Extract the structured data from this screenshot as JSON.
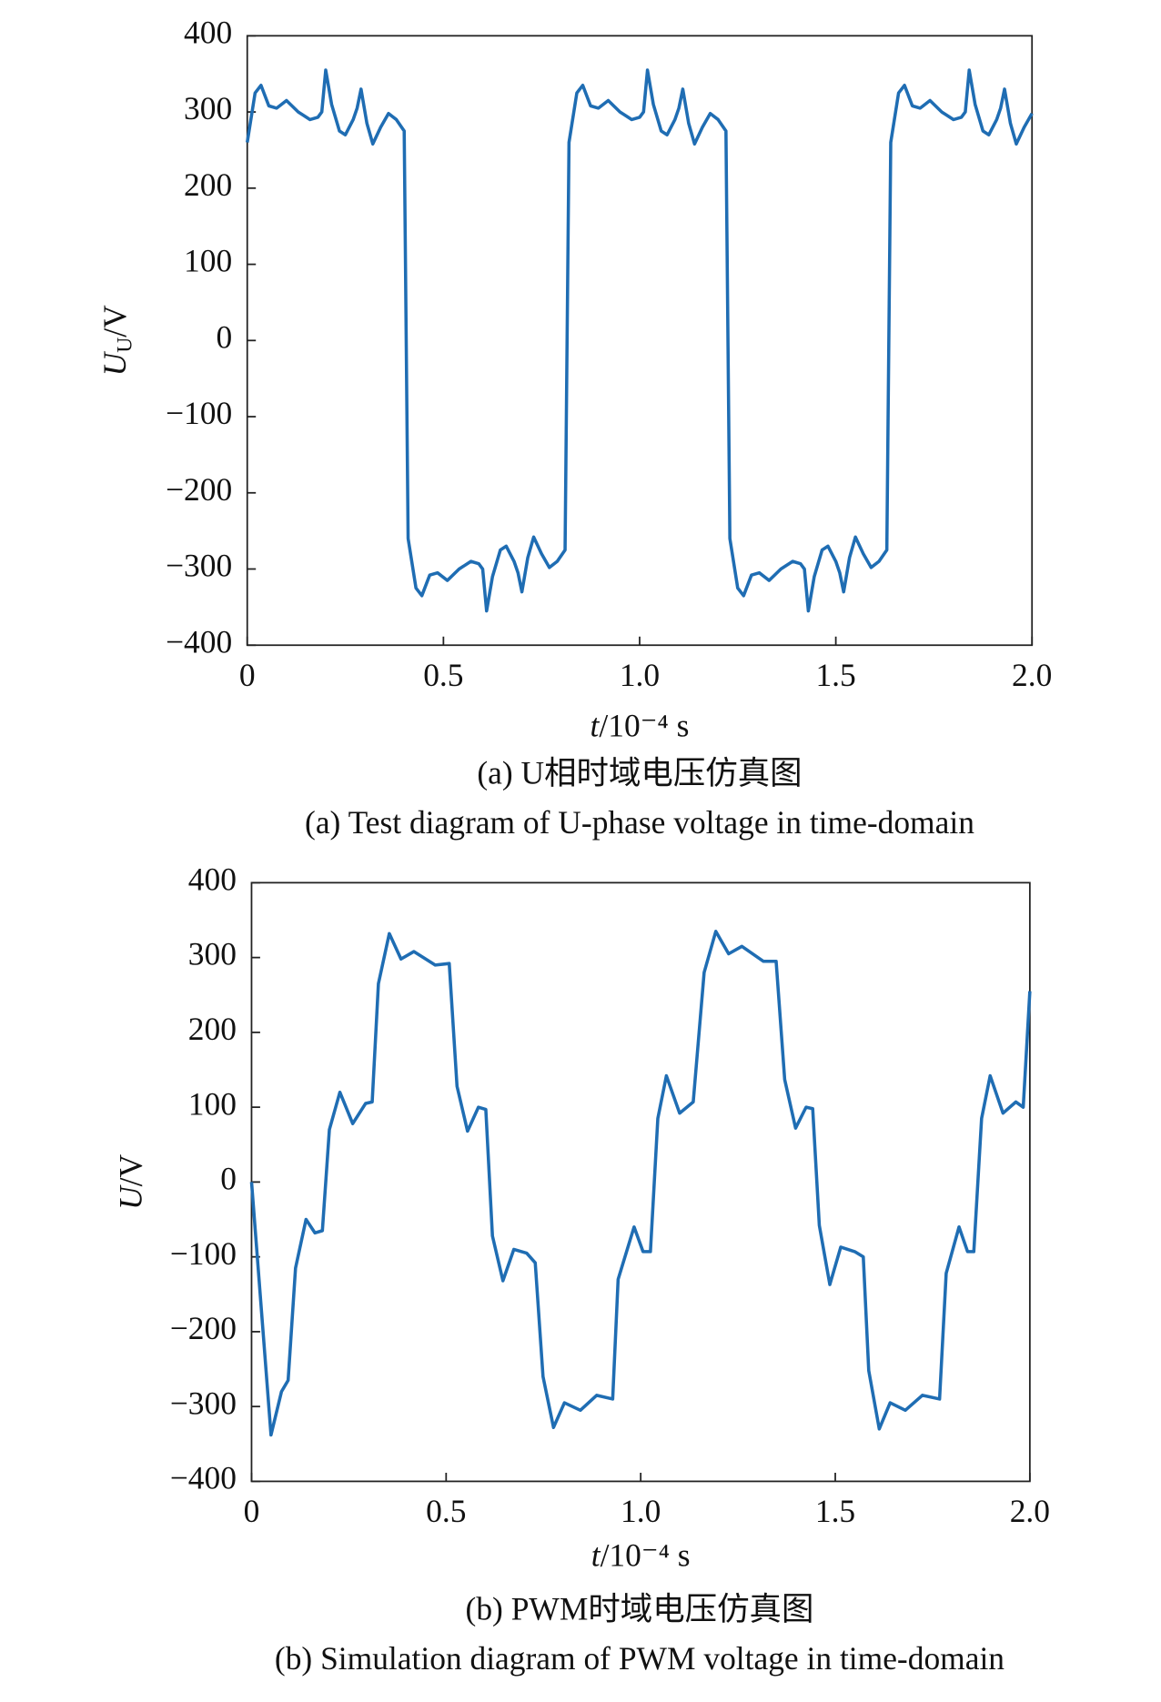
{
  "chart_data": [
    {
      "type": "line",
      "color": "#1f6db3",
      "xlabel": {
        "var": "t",
        "unit": "/10⁻⁴ s"
      },
      "ylabel": {
        "var": "U",
        "sub": "U",
        "unit": "/V"
      },
      "captions": [
        "(a) U相时域电压仿真图",
        "(a) Test diagram of U-phase voltage in time-domain"
      ],
      "xlim": [
        0,
        2
      ],
      "ylim": [
        -400,
        400
      ],
      "xticks": [
        0,
        0.5,
        {
          "value": 1,
          "label": "1.0"
        },
        1.5,
        {
          "value": 2,
          "label": "2.0"
        }
      ],
      "yticks": [
        {
          "value": -400,
          "label": "−400"
        },
        {
          "value": -300,
          "label": "−300"
        },
        {
          "value": -200,
          "label": "−200"
        },
        {
          "value": -100,
          "label": "−100"
        },
        0,
        100,
        200,
        300,
        400
      ],
      "x": [
        0,
        0.02,
        0.035,
        0.055,
        0.075,
        0.1,
        0.13,
        0.16,
        0.18,
        0.19,
        0.2,
        0.215,
        0.235,
        0.25,
        0.27,
        0.28,
        0.29,
        0.305,
        0.32,
        0.34,
        0.36,
        0.38,
        0.4,
        0.41,
        0.43,
        0.445,
        0.465,
        0.485,
        0.51,
        0.54,
        0.57,
        0.59,
        0.6,
        0.61,
        0.625,
        0.645,
        0.66,
        0.68,
        0.69,
        0.7,
        0.715,
        0.73,
        0.75,
        0.77,
        0.79,
        0.81,
        0.82,
        0.84,
        0.855,
        0.875,
        0.895,
        0.92,
        0.95,
        0.98,
        1,
        1.01,
        1.02,
        1.035,
        1.055,
        1.07,
        1.09,
        1.1,
        1.11,
        1.125,
        1.14,
        1.16,
        1.18,
        1.2,
        1.22,
        1.23,
        1.25,
        1.265,
        1.285,
        1.305,
        1.33,
        1.36,
        1.39,
        1.41,
        1.42,
        1.43,
        1.445,
        1.465,
        1.48,
        1.5,
        1.51,
        1.52,
        1.535,
        1.55,
        1.57,
        1.59,
        1.61,
        1.63,
        1.64,
        1.66,
        1.675,
        1.695,
        1.715,
        1.74,
        1.77,
        1.8,
        1.82,
        1.83,
        1.84,
        1.855,
        1.875,
        1.89,
        1.91,
        1.92,
        1.93,
        1.945,
        1.96,
        1.98,
        2.0
      ],
      "values": [
        260,
        325,
        335,
        308,
        305,
        315,
        300,
        290,
        293,
        300,
        355,
        310,
        275,
        270,
        290,
        305,
        330,
        285,
        258,
        280,
        298,
        290,
        275,
        -260,
        -325,
        -335,
        -308,
        -305,
        -315,
        -300,
        -290,
        -293,
        -300,
        -355,
        -310,
        -275,
        -270,
        -290,
        -305,
        -330,
        -285,
        -258,
        -280,
        -298,
        -290,
        -275,
        260,
        325,
        335,
        308,
        305,
        315,
        300,
        290,
        293,
        300,
        355,
        310,
        275,
        270,
        290,
        305,
        330,
        285,
        258,
        280,
        298,
        290,
        275,
        -260,
        -325,
        -335,
        -308,
        -305,
        -315,
        -300,
        -290,
        -293,
        -300,
        -355,
        -310,
        -275,
        -270,
        -290,
        -305,
        -330,
        -285,
        -258,
        -280,
        -298,
        -290,
        -275,
        260,
        325,
        335,
        308,
        305,
        315,
        300,
        290,
        293,
        300,
        355,
        310,
        275,
        270,
        290,
        305,
        330,
        285,
        258,
        280,
        298
      ]
    },
    {
      "type": "line",
      "color": "#1f6db3",
      "xlabel": {
        "var": "t",
        "unit": "/10⁻⁴ s"
      },
      "ylabel": {
        "var": "U",
        "unit": "/V"
      },
      "captions": [
        "(b) PWM时域电压仿真图",
        "(b) Simulation diagram of PWM voltage in time-domain"
      ],
      "xlim": [
        0,
        2
      ],
      "ylim": [
        -400,
        400
      ],
      "xticks": [
        0,
        0.5,
        {
          "value": 1,
          "label": "1.0"
        },
        1.5,
        {
          "value": 2,
          "label": "2.0"
        }
      ],
      "yticks": [
        {
          "value": -400,
          "label": "−400"
        },
        {
          "value": -300,
          "label": "−300"
        },
        {
          "value": -200,
          "label": "−200"
        },
        {
          "value": -100,
          "label": "−100"
        },
        0,
        100,
        200,
        300,
        400
      ],
      "x": [
        0,
        0.05,
        0.077,
        0.094,
        0.113,
        0.14,
        0.163,
        0.182,
        0.2,
        0.227,
        0.26,
        0.293,
        0.31,
        0.326,
        0.354,
        0.384,
        0.417,
        0.472,
        0.508,
        0.528,
        0.555,
        0.583,
        0.602,
        0.619,
        0.646,
        0.674,
        0.707,
        0.729,
        0.749,
        0.776,
        0.804,
        0.845,
        0.887,
        0.928,
        0.942,
        0.983,
        1.006,
        1.025,
        1.044,
        1.066,
        1.1,
        1.135,
        1.163,
        1.193,
        1.226,
        1.26,
        1.315,
        1.348,
        1.37,
        1.398,
        1.425,
        1.442,
        1.459,
        1.486,
        1.514,
        1.55,
        1.572,
        1.586,
        1.613,
        1.641,
        1.68,
        1.724,
        1.768,
        1.785,
        1.818,
        1.84,
        1.856,
        1.876,
        1.898,
        1.931,
        1.964,
        1.983,
        2.0
      ],
      "values": [
        0,
        -338,
        -280,
        -265,
        -115,
        -50,
        -68,
        -65,
        70,
        120,
        78,
        105,
        107,
        265,
        332,
        298,
        308,
        290,
        292,
        128,
        68,
        100,
        97,
        -72,
        -132,
        -90,
        -95,
        -108,
        -260,
        -328,
        -295,
        -305,
        -285,
        -290,
        -130,
        -60,
        -93,
        -93,
        85,
        142,
        92,
        107,
        280,
        335,
        305,
        315,
        295,
        295,
        137,
        72,
        100,
        98,
        -58,
        -137,
        -87,
        -93,
        -100,
        -252,
        -330,
        -295,
        -305,
        -285,
        -290,
        -122,
        -60,
        -93,
        -93,
        85,
        142,
        92,
        107,
        100,
        255
      ]
    }
  ]
}
